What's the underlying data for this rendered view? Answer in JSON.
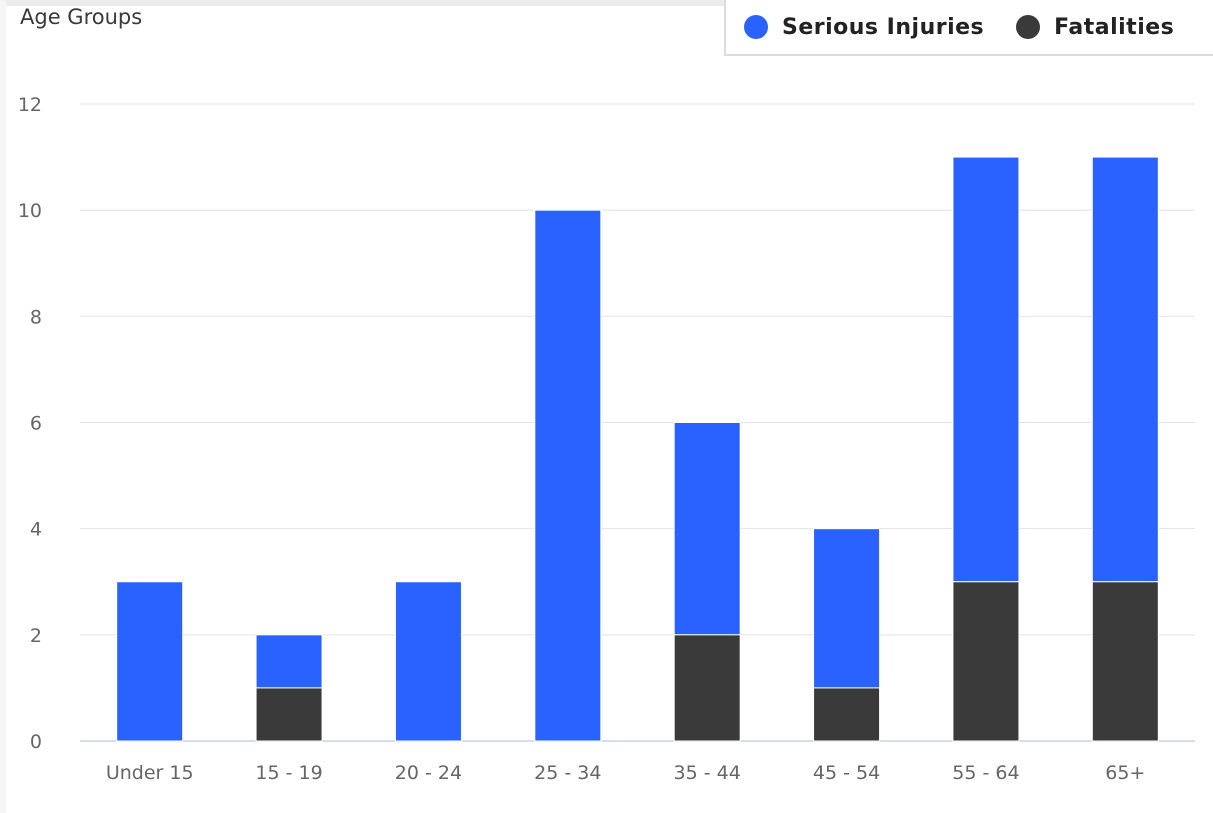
{
  "title": "Age Groups",
  "legend": {
    "serious_label": "Serious Injuries",
    "fatal_label": "Fatalities"
  },
  "colors": {
    "serious": "#2962ff",
    "fatal": "#3a3a3a",
    "grid": "#e4e4e4",
    "axis": "#c9d4e8"
  },
  "chart_data": {
    "type": "bar",
    "stacked": true,
    "title": "Age Groups",
    "xlabel": "",
    "ylabel": "",
    "categories": [
      "Under 15",
      "15 - 19",
      "20 - 24",
      "25 - 34",
      "35 - 44",
      "45 - 54",
      "55 - 64",
      "65+"
    ],
    "series": [
      {
        "name": "Fatalities",
        "values": [
          0,
          1,
          0,
          0,
          2,
          1,
          3,
          3
        ]
      },
      {
        "name": "Serious Injuries",
        "values": [
          3,
          1,
          3,
          10,
          4,
          3,
          8,
          8
        ]
      }
    ],
    "ylim": [
      0,
      12
    ],
    "yticks": [
      0,
      2,
      4,
      6,
      8,
      10,
      12
    ],
    "grid": true,
    "legend_position": "top-right"
  }
}
